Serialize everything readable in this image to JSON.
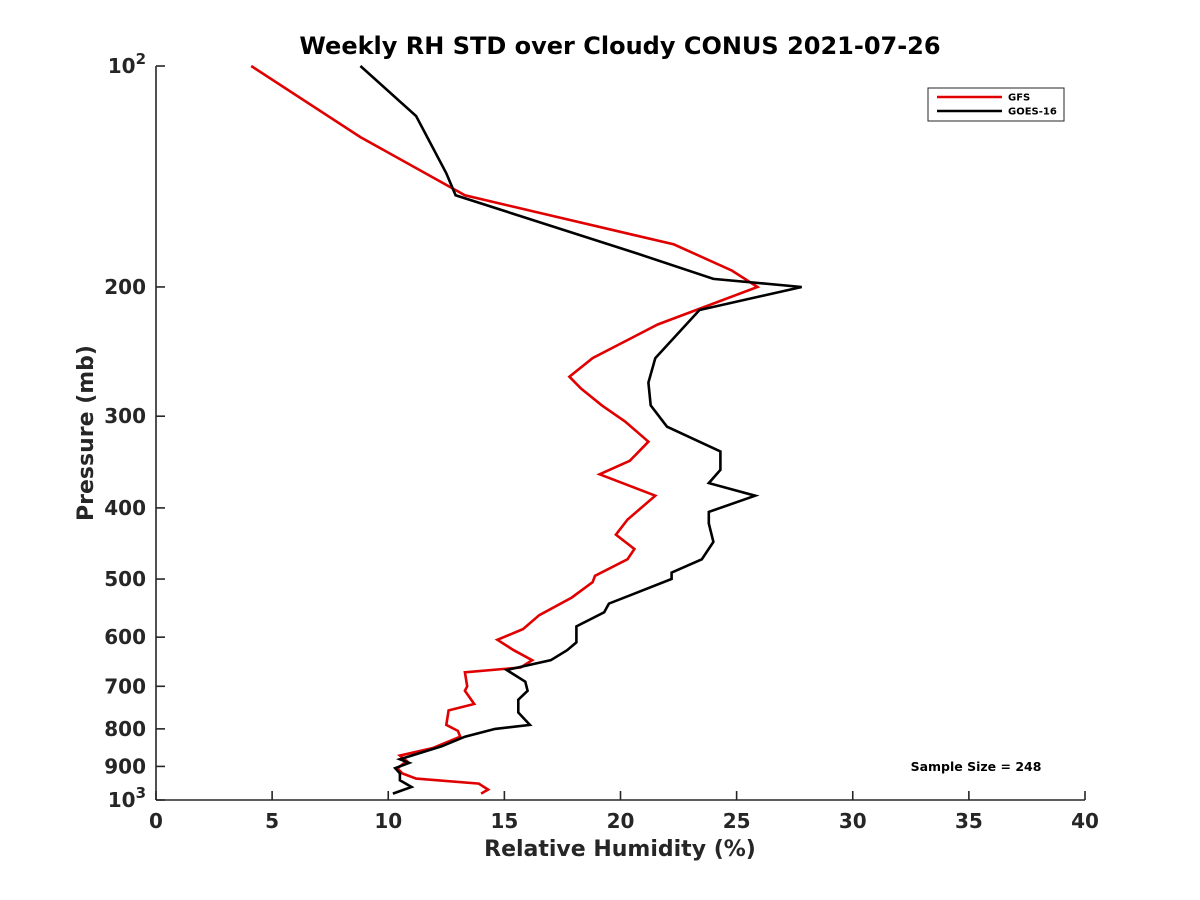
{
  "chart_data": {
    "type": "line",
    "title": "Weekly RH STD over Cloudy CONUS 2021-07-26",
    "xlabel": "Relative Humidity (%)",
    "ylabel": "Pressure (mb)",
    "xlim": [
      0,
      40
    ],
    "ylim": [
      100,
      1000
    ],
    "y_scale": "log",
    "y_reversed": true,
    "grid": false,
    "legend_position": "top-right",
    "x_ticks": [
      {
        "value": 0,
        "label": "0"
      },
      {
        "value": 5,
        "label": "5"
      },
      {
        "value": 10,
        "label": "10"
      },
      {
        "value": 15,
        "label": "15"
      },
      {
        "value": 20,
        "label": "20"
      },
      {
        "value": 25,
        "label": "25"
      },
      {
        "value": 30,
        "label": "30"
      },
      {
        "value": 35,
        "label": "35"
      },
      {
        "value": 40,
        "label": "40"
      }
    ],
    "y_ticks": [
      {
        "value": 100,
        "label": "10",
        "sup": "2"
      },
      {
        "value": 200,
        "label": "200",
        "sup": ""
      },
      {
        "value": 300,
        "label": "300",
        "sup": ""
      },
      {
        "value": 400,
        "label": "400",
        "sup": ""
      },
      {
        "value": 500,
        "label": "500",
        "sup": ""
      },
      {
        "value": 600,
        "label": "600",
        "sup": ""
      },
      {
        "value": 700,
        "label": "700",
        "sup": ""
      },
      {
        "value": 800,
        "label": "800",
        "sup": ""
      },
      {
        "value": 900,
        "label": "900",
        "sup": ""
      },
      {
        "value": 1000,
        "label": "10",
        "sup": "3"
      }
    ],
    "annotation": "Sample Size = 248",
    "series": [
      {
        "name": "GFS",
        "color": "#e00000",
        "points": [
          [
            4.1,
            100
          ],
          [
            8.8,
            125
          ],
          [
            13.3,
            150
          ],
          [
            22.3,
            175
          ],
          [
            24.8,
            190
          ],
          [
            25.9,
            200
          ],
          [
            21.6,
            225
          ],
          [
            18.8,
            250
          ],
          [
            17.8,
            265
          ],
          [
            18.3,
            275
          ],
          [
            19.2,
            290
          ],
          [
            20.2,
            305
          ],
          [
            21.2,
            325
          ],
          [
            20.4,
            345
          ],
          [
            19.1,
            360
          ],
          [
            21.5,
            385
          ],
          [
            20.3,
            415
          ],
          [
            19.8,
            435
          ],
          [
            20.6,
            455
          ],
          [
            20.3,
            470
          ],
          [
            18.9,
            495
          ],
          [
            18.8,
            505
          ],
          [
            17.9,
            530
          ],
          [
            16.5,
            560
          ],
          [
            15.8,
            585
          ],
          [
            14.7,
            605
          ],
          [
            15.4,
            625
          ],
          [
            16.2,
            645
          ],
          [
            15.7,
            660
          ],
          [
            13.3,
            670
          ],
          [
            13.4,
            700
          ],
          [
            13.3,
            710
          ],
          [
            13.7,
            740
          ],
          [
            12.6,
            755
          ],
          [
            12.5,
            790
          ],
          [
            13.0,
            805
          ],
          [
            13.1,
            820
          ],
          [
            11.9,
            850
          ],
          [
            10.5,
            870
          ],
          [
            10.8,
            885
          ],
          [
            10.4,
            905
          ],
          [
            10.6,
            920
          ],
          [
            11.2,
            935
          ],
          [
            13.9,
            950
          ],
          [
            14.3,
            968
          ],
          [
            14.0,
            980
          ]
        ]
      },
      {
        "name": "GOES-16",
        "color": "#000000",
        "points": [
          [
            8.8,
            100
          ],
          [
            11.2,
            117
          ],
          [
            12.5,
            140
          ],
          [
            12.9,
            150
          ],
          [
            20.7,
            180
          ],
          [
            24.0,
            195
          ],
          [
            27.8,
            200
          ],
          [
            23.4,
            215
          ],
          [
            21.5,
            250
          ],
          [
            21.2,
            270
          ],
          [
            21.3,
            290
          ],
          [
            22.0,
            310
          ],
          [
            24.3,
            335
          ],
          [
            24.3,
            355
          ],
          [
            23.8,
            370
          ],
          [
            25.8,
            385
          ],
          [
            23.8,
            405
          ],
          [
            23.8,
            420
          ],
          [
            24.0,
            445
          ],
          [
            23.5,
            470
          ],
          [
            22.2,
            490
          ],
          [
            22.2,
            500
          ],
          [
            19.5,
            540
          ],
          [
            19.3,
            555
          ],
          [
            18.1,
            580
          ],
          [
            18.1,
            610
          ],
          [
            17.7,
            625
          ],
          [
            17.0,
            645
          ],
          [
            15.1,
            665
          ],
          [
            15.9,
            690
          ],
          [
            16.0,
            710
          ],
          [
            15.6,
            730
          ],
          [
            15.6,
            760
          ],
          [
            16.1,
            790
          ],
          [
            14.6,
            800
          ],
          [
            13.3,
            820
          ],
          [
            12.3,
            845
          ],
          [
            10.5,
            880
          ],
          [
            10.9,
            890
          ],
          [
            10.3,
            905
          ],
          [
            10.5,
            920
          ],
          [
            10.5,
            940
          ],
          [
            11.0,
            960
          ],
          [
            10.2,
            980
          ]
        ]
      }
    ]
  }
}
